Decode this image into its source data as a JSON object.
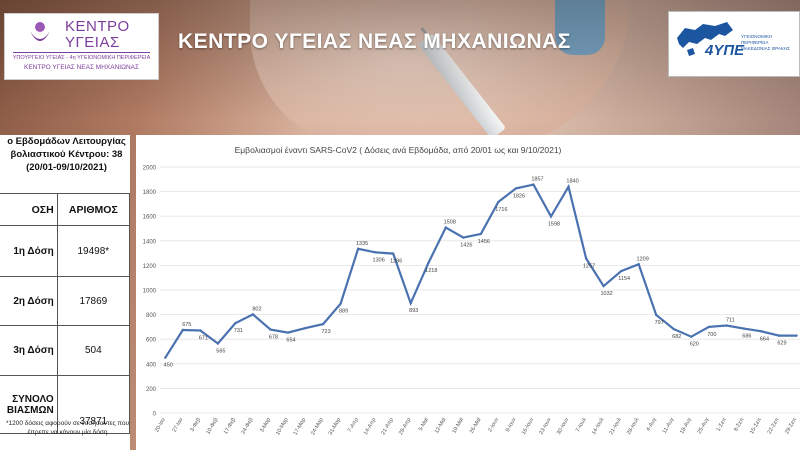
{
  "header": {
    "left_logo": {
      "name_line1": "ΚΕΝΤΡΟ",
      "name_line2": "ΥΓΕΙΑΣ",
      "sub_line1": "ΥΠΟΥΡΓΕΙΟ ΥΓΕΙΑΣ - 4η ΥΓΕΙΟΝΟΜΙΚΗ ΠΕΡΙΦΕΡΕΙΑ",
      "sub_line2": "ΚΕΝΤΡΟ ΥΓΕΙΑΣ ΝΕΑΣ ΜΗΧΑΝΙΩΝΑΣ",
      "color": "#7c3e9c"
    },
    "title": "ΚΕΝΤΡΟ ΥΓΕΙΑΣ ΝΕΑΣ ΜΗΧΑΝΙΩΝΑΣ",
    "right_logo": {
      "mark": "4ΥΠΕ",
      "text": "ΥΓΕΙΟΝΟΜΙΚΗ ΠΕΡΙΦΕΡΕΙΑ ΜΑΚΕΔΟΝΙΑΣ ΘΡΑΚΗΣ",
      "color": "#1c55a0"
    }
  },
  "stats": {
    "heading_line1": "ο Εβδομάδων Λειτουργίας",
    "heading_line2": "βολιαστικού Κέντρου: 38",
    "heading_line3": "(20/01-09/10/2021)",
    "col_dose": "ΟΣΗ",
    "col_count": "ΑΡΙΘΜΟΣ",
    "rows": [
      {
        "label": "1η Δόση",
        "value": "19498*"
      },
      {
        "label": "2η Δόση",
        "value": "17869"
      },
      {
        "label": "3η Δόση",
        "value": "504"
      }
    ],
    "total_label_line1": "ΣΥΝΟΛΟ",
    "total_label_line2": "ΒΙΑΣΜΩΝ",
    "total_value": "37871",
    "note_line1": "*1200 δόσεις αφορούν σε νοσήσαντες που",
    "note_line2": "έπρεπε να κάνουν μία δόση"
  },
  "chart_data": {
    "type": "line",
    "title": "Εμβολιασμοί έναντι SARS-CoV2 ( Δόσεις ανά Εβδομάδα, από 20/01 ως και 9/10/2021)",
    "xlabel": "",
    "ylabel": "",
    "ylim": [
      0,
      2000
    ],
    "yticks": [
      0,
      200,
      400,
      600,
      800,
      1000,
      1200,
      1400,
      1600,
      1800,
      2000
    ],
    "grid": true,
    "color": "#4a72b0",
    "categories": [
      "20-Ιαν",
      "27-Ιαν",
      "3-Φεβ",
      "10-Φεβ",
      "17-Φεβ",
      "24-Φεβ",
      "3-Μαρ",
      "10-Μαρ",
      "17-Μαρ",
      "24-Μαρ",
      "31-Μαρ",
      "7-Απρ",
      "14-Απρ",
      "21-Απρ",
      "28-Απρ",
      "5-Μαϊ",
      "12-Μαϊ",
      "19-Μαϊ",
      "26-Μαϊ",
      "2-Ιουν",
      "9-Ιουν",
      "16-Ιουν",
      "23-Ιουν",
      "30-Ιουν",
      "7-Ιουλ",
      "14-Ιουλ",
      "21-Ιουλ",
      "28-Ιουλ",
      "4-Αυγ",
      "11-Αυγ",
      "18-Αυγ",
      "25-Αυγ",
      "1-Σεπ",
      "8-Σεπ",
      "15-Σεπ",
      "22-Σεπ",
      "29-Σεπ"
    ],
    "values": [
      450,
      675,
      671,
      565,
      731,
      802,
      678,
      654,
      690,
      723,
      889,
      1335,
      1306,
      1296,
      893,
      1218,
      1508,
      1426,
      1456,
      1716,
      1826,
      1857,
      1598,
      1840,
      1257,
      1032,
      1154,
      1209,
      797,
      682,
      620,
      700,
      711,
      686,
      664,
      629,
      629
    ],
    "data_labels": [
      "450",
      "675",
      "671",
      "565",
      "731",
      "802",
      "678",
      "654",
      "",
      "723",
      "889",
      "1335",
      "1306",
      "1296",
      "893",
      "1218",
      "1508",
      "1426",
      "1456",
      "1716",
      "1826",
      "1857",
      "1598",
      "1840",
      "1257",
      "1032",
      "1154",
      "1209",
      "797",
      "682",
      "620",
      "700",
      "711",
      "686",
      "664",
      "629",
      ""
    ]
  }
}
